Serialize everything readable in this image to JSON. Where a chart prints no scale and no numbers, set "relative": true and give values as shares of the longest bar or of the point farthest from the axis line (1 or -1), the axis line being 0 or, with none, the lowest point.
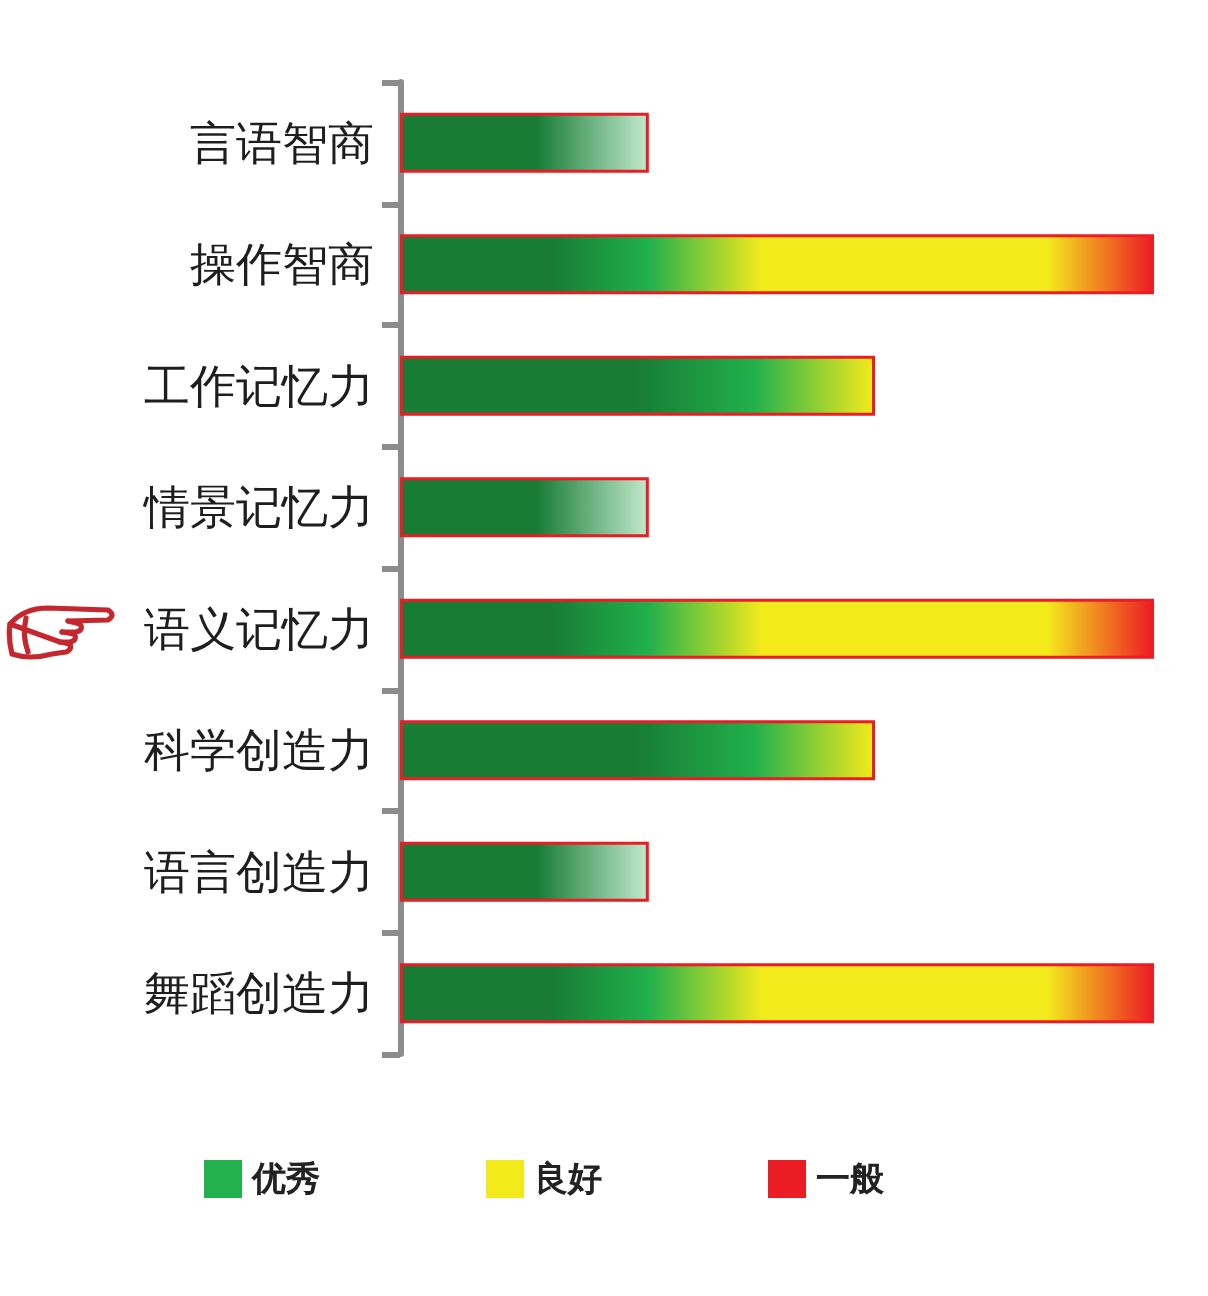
{
  "chart_data": {
    "type": "bar",
    "orientation": "horizontal",
    "relative": true,
    "stacked": true,
    "legend": "bottom",
    "categories": [
      "言语智商",
      "操作智商",
      "工作记忆力",
      "情景记忆力",
      "语义记忆力",
      "科学创造力",
      "语言创造力",
      "舞蹈创造力"
    ],
    "series": [
      {
        "name": "优秀",
        "color": "#22b14c",
        "values": [
          0.33,
          null,
          null,
          0.33,
          null,
          null,
          0.33,
          null
        ]
      },
      {
        "name": "良好",
        "color": "#f3ea1c",
        "values": [
          null,
          null,
          0.63,
          null,
          null,
          0.63,
          null,
          null
        ]
      },
      {
        "name": "一般",
        "color": "#ec1c24",
        "values": [
          null,
          1,
          null,
          null,
          1,
          null,
          null,
          1
        ]
      }
    ]
  }
}
